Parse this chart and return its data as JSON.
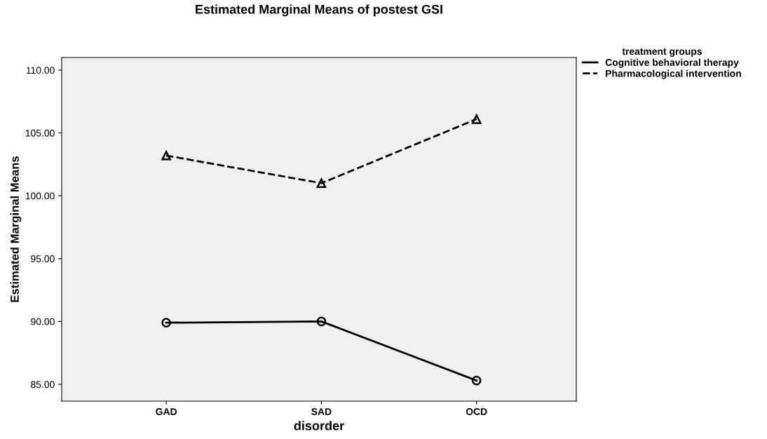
{
  "chart_data": {
    "type": "line",
    "title": "Estimated Marginal Means of postest GSI",
    "xlabel": "disorder",
    "ylabel": "Estimated Marginal Means",
    "legend_title": "treatment groups",
    "categories": [
      "GAD",
      "SAD",
      "OCD"
    ],
    "series": [
      {
        "name": "Cognitive behavioral therapy",
        "color": "#000000",
        "values": [
          89.9,
          90.0,
          85.3
        ],
        "marker": "circle",
        "line_style": "solid"
      },
      {
        "name": "Pharmacological intervention",
        "color": "#000000",
        "values": [
          103.2,
          101.0,
          106.1
        ],
        "marker": "triangle",
        "line_style": "dashed"
      }
    ],
    "ylim": [
      83.66,
      111.0
    ],
    "yticks": [
      {
        "value": 85,
        "label": "85.00"
      },
      {
        "value": 90,
        "label": "90.00"
      },
      {
        "value": 95,
        "label": "95.00"
      },
      {
        "value": 100,
        "label": "100.00"
      },
      {
        "value": 105,
        "label": "105.00"
      },
      {
        "value": 110,
        "label": "110.00"
      }
    ],
    "grid": false,
    "legend": "top right"
  }
}
